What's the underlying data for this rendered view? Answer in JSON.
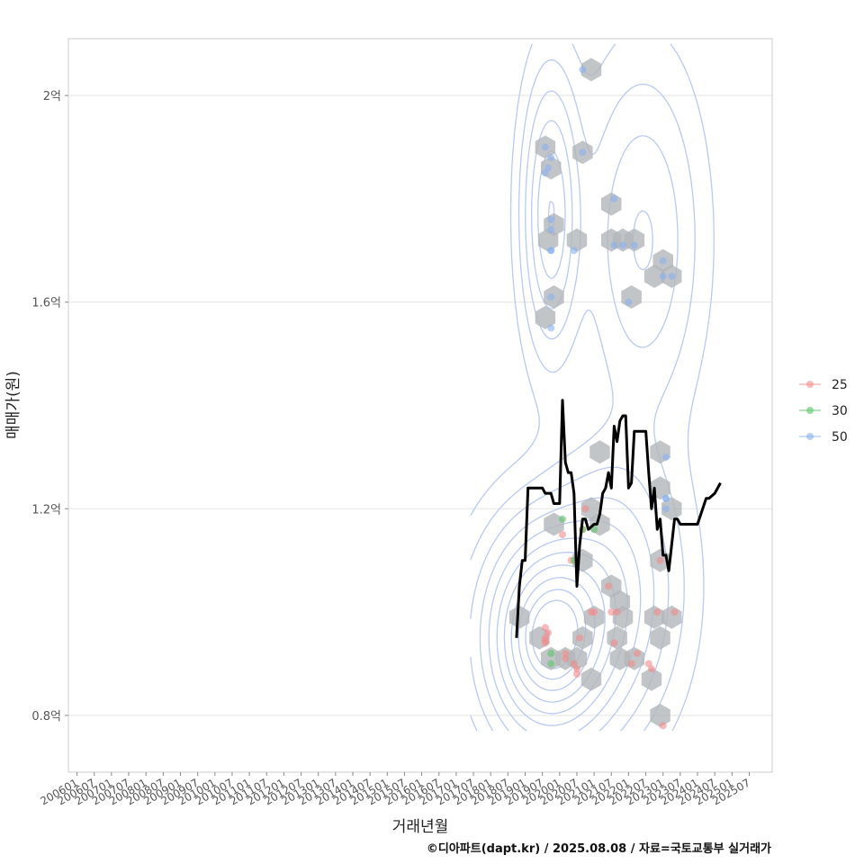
{
  "chart_data": {
    "type": "scatter",
    "title": "",
    "xlabel": "거래년월",
    "ylabel": "매매가(원)",
    "caption": "©디아파트(dapt.kr) / 2025.08.08 / 자료=국토교통부 실거래가",
    "x_tick_labels": [
      "200601",
      "200607",
      "200701",
      "200707",
      "200801",
      "200807",
      "200901",
      "200907",
      "201001",
      "201007",
      "201101",
      "201107",
      "201201",
      "201207",
      "201301",
      "201307",
      "201401",
      "201407",
      "201501",
      "201507",
      "201601",
      "201607",
      "201701",
      "201707",
      "201801",
      "201807",
      "201901",
      "201907",
      "202001",
      "202007",
      "202101",
      "202107",
      "202201",
      "202207",
      "202301",
      "202307",
      "202401",
      "202407",
      "202501",
      "202507"
    ],
    "y_ticks": [
      0.8,
      1.2,
      1.6,
      2.0
    ],
    "y_tick_labels": [
      "0.8억",
      "1.2억",
      "1.6억",
      "2억"
    ],
    "ylim": [
      0.69,
      2.11
    ],
    "x_range": [
      "2005-10",
      "2026-03"
    ],
    "grid": true,
    "legend": {
      "position": "right",
      "entries": [
        {
          "label": "25",
          "color": "#f28b8b"
        },
        {
          "label": "30",
          "color": "#5cc46a"
        },
        {
          "label": "50",
          "color": "#8ab0f0"
        }
      ]
    },
    "series": [
      {
        "name": "25",
        "color": "#f28b8b",
        "points": [
          [
            "2019-08",
            0.97
          ],
          [
            "2019-08",
            0.95
          ],
          [
            "2019-08",
            0.94
          ],
          [
            "2019-09",
            0.96
          ],
          [
            "2019-08",
            0.945
          ],
          [
            "2020-03",
            0.92
          ],
          [
            "2020-03",
            0.91
          ],
          [
            "2020-06",
            0.9
          ],
          [
            "2020-07",
            0.89
          ],
          [
            "2020-08",
            0.95
          ],
          [
            "2020-02",
            1.15
          ],
          [
            "2020-05",
            1.1
          ],
          [
            "2020-07",
            0.88
          ],
          [
            "2020-09",
            1.16
          ],
          [
            "2020-10",
            1.2
          ],
          [
            "2020-12",
            1.0
          ],
          [
            "2021-01",
            1.0
          ],
          [
            "2021-06",
            1.05
          ],
          [
            "2021-07",
            1.0
          ],
          [
            "2021-08",
            0.94
          ],
          [
            "2021-09",
            1.0
          ],
          [
            "2022-02",
            0.9
          ],
          [
            "2022-04",
            0.92
          ],
          [
            "2022-08",
            0.9
          ],
          [
            "2022-09",
            0.89
          ],
          [
            "2022-11",
            1.0
          ],
          [
            "2022-12",
            1.1
          ],
          [
            "2023-01",
            0.78
          ],
          [
            "2023-05",
            1.0
          ]
        ]
      },
      {
        "name": "30",
        "color": "#5cc46a",
        "points": [
          [
            "2019-10",
            0.92
          ],
          [
            "2019-10",
            0.9
          ],
          [
            "2020-02",
            1.18
          ],
          [
            "2020-06",
            1.1
          ],
          [
            "2020-09",
            1.16
          ],
          [
            "2021-01",
            1.16
          ]
        ]
      },
      {
        "name": "50",
        "color": "#8ab0f0",
        "points": [
          [
            "2019-08",
            1.9
          ],
          [
            "2019-09",
            1.86
          ],
          [
            "2019-08",
            1.85
          ],
          [
            "2019-10",
            1.88
          ],
          [
            "2019-10",
            1.76
          ],
          [
            "2019-10",
            1.74
          ],
          [
            "2019-10",
            1.7
          ],
          [
            "2019-10",
            1.7
          ],
          [
            "2019-10",
            1.61
          ],
          [
            "2019-10",
            1.55
          ],
          [
            "2020-06",
            1.7
          ],
          [
            "2020-09",
            2.05
          ],
          [
            "2020-09",
            1.89
          ],
          [
            "2021-08",
            1.8
          ],
          [
            "2021-08",
            1.71
          ],
          [
            "2021-11",
            1.71
          ],
          [
            "2022-03",
            1.71
          ],
          [
            "2022-01",
            1.6
          ],
          [
            "2023-01",
            1.68
          ],
          [
            "2023-01",
            1.65
          ],
          [
            "2023-02",
            1.3
          ],
          [
            "2023-02",
            1.22
          ],
          [
            "2023-02",
            1.2
          ],
          [
            "2023-04",
            1.65
          ],
          [
            "2023-02",
            1.22
          ]
        ]
      }
    ],
    "hexbins": [
      [
        "2020-12",
        2.05
      ],
      [
        "2019-08",
        1.9
      ],
      [
        "2019-10",
        1.86
      ],
      [
        "2019-11",
        1.75
      ],
      [
        "2019-09",
        1.72
      ],
      [
        "2020-09",
        1.89
      ],
      [
        "2020-07",
        1.72
      ],
      [
        "2021-07",
        1.79
      ],
      [
        "2021-07",
        1.72
      ],
      [
        "2021-11",
        1.72
      ],
      [
        "2022-03",
        1.72
      ],
      [
        "2022-02",
        1.61
      ],
      [
        "2019-11",
        1.61
      ],
      [
        "2019-08",
        1.57
      ],
      [
        "2023-01",
        1.68
      ],
      [
        "2022-10",
        1.65
      ],
      [
        "2023-04",
        1.65
      ],
      [
        "2021-03",
        1.31
      ],
      [
        "2022-12",
        1.31
      ],
      [
        "2022-12",
        1.24
      ],
      [
        "2023-04",
        1.2
      ],
      [
        "2020-12",
        1.2
      ],
      [
        "2021-03",
        1.17
      ],
      [
        "2019-11",
        1.17
      ],
      [
        "2020-09",
        1.1
      ],
      [
        "2022-12",
        1.1
      ],
      [
        "2021-07",
        1.05
      ],
      [
        "2021-10",
        1.02
      ],
      [
        "2021-11",
        0.99
      ],
      [
        "2021-01",
        0.99
      ],
      [
        "2022-10",
        0.99
      ],
      [
        "2023-04",
        0.99
      ],
      [
        "2018-11",
        0.99
      ],
      [
        "2021-09",
        0.95
      ],
      [
        "2022-12",
        0.95
      ],
      [
        "2019-06",
        0.95
      ],
      [
        "2020-09",
        0.95
      ],
      [
        "2019-10",
        0.91
      ],
      [
        "2020-03",
        0.91
      ],
      [
        "2020-07",
        0.91
      ],
      [
        "2021-10",
        0.91
      ],
      [
        "2022-03",
        0.91
      ],
      [
        "2020-12",
        0.87
      ],
      [
        "2022-09",
        0.87
      ],
      [
        "2022-12",
        0.8
      ]
    ],
    "trend_line": {
      "color": "#000000",
      "points": [
        [
          "2018-10",
          0.95
        ],
        [
          "2018-11",
          1.05
        ],
        [
          "2018-12",
          1.1
        ],
        [
          "2019-01",
          1.1
        ],
        [
          "2019-02",
          1.24
        ],
        [
          "2019-05",
          1.24
        ],
        [
          "2019-07",
          1.24
        ],
        [
          "2019-08",
          1.23
        ],
        [
          "2019-10",
          1.23
        ],
        [
          "2019-11",
          1.21
        ],
        [
          "2020-01",
          1.21
        ],
        [
          "2020-02",
          1.41
        ],
        [
          "2020-03",
          1.29
        ],
        [
          "2020-04",
          1.27
        ],
        [
          "2020-05",
          1.27
        ],
        [
          "2020-06",
          1.23
        ],
        [
          "2020-07",
          1.05
        ],
        [
          "2020-08",
          1.13
        ],
        [
          "2020-09",
          1.18
        ],
        [
          "2020-10",
          1.18
        ],
        [
          "2020-11",
          1.16
        ],
        [
          "2021-01",
          1.17
        ],
        [
          "2021-02",
          1.17
        ],
        [
          "2021-03",
          1.19
        ],
        [
          "2021-04",
          1.23
        ],
        [
          "2021-05",
          1.24
        ],
        [
          "2021-06",
          1.27
        ],
        [
          "2021-07",
          1.24
        ],
        [
          "2021-08",
          1.36
        ],
        [
          "2021-09",
          1.33
        ],
        [
          "2021-10",
          1.37
        ],
        [
          "2021-11",
          1.38
        ],
        [
          "2021-12",
          1.38
        ],
        [
          "2022-01",
          1.24
        ],
        [
          "2022-02",
          1.25
        ],
        [
          "2022-03",
          1.35
        ],
        [
          "2022-06",
          1.35
        ],
        [
          "2022-07",
          1.35
        ],
        [
          "2022-08",
          1.27
        ],
        [
          "2022-09",
          1.2
        ],
        [
          "2022-10",
          1.24
        ],
        [
          "2022-11",
          1.16
        ],
        [
          "2022-12",
          1.18
        ],
        [
          "2023-01",
          1.11
        ],
        [
          "2023-02",
          1.11
        ],
        [
          "2023-03",
          1.08
        ],
        [
          "2023-05",
          1.18
        ],
        [
          "2023-06",
          1.18
        ],
        [
          "2023-07",
          1.17
        ],
        [
          "2023-10",
          1.17
        ],
        [
          "2024-01",
          1.17
        ],
        [
          "2024-04",
          1.22
        ],
        [
          "2024-05",
          1.22
        ],
        [
          "2024-07",
          1.23
        ],
        [
          "2024-09",
          1.25
        ]
      ]
    },
    "density_centers": [
      {
        "x": "2019-09",
        "y": 0.95,
        "sx": 14,
        "sy": 0.13,
        "w": 1.0
      },
      {
        "x": "2019-10",
        "y": 1.77,
        "sx": 6,
        "sy": 0.16,
        "w": 0.45
      },
      {
        "x": "2022-06",
        "y": 1.72,
        "sx": 12,
        "sy": 0.2,
        "w": 0.25
      },
      {
        "x": "2021-08",
        "y": 1.05,
        "sx": 14,
        "sy": 0.16,
        "w": 0.35
      }
    ]
  }
}
